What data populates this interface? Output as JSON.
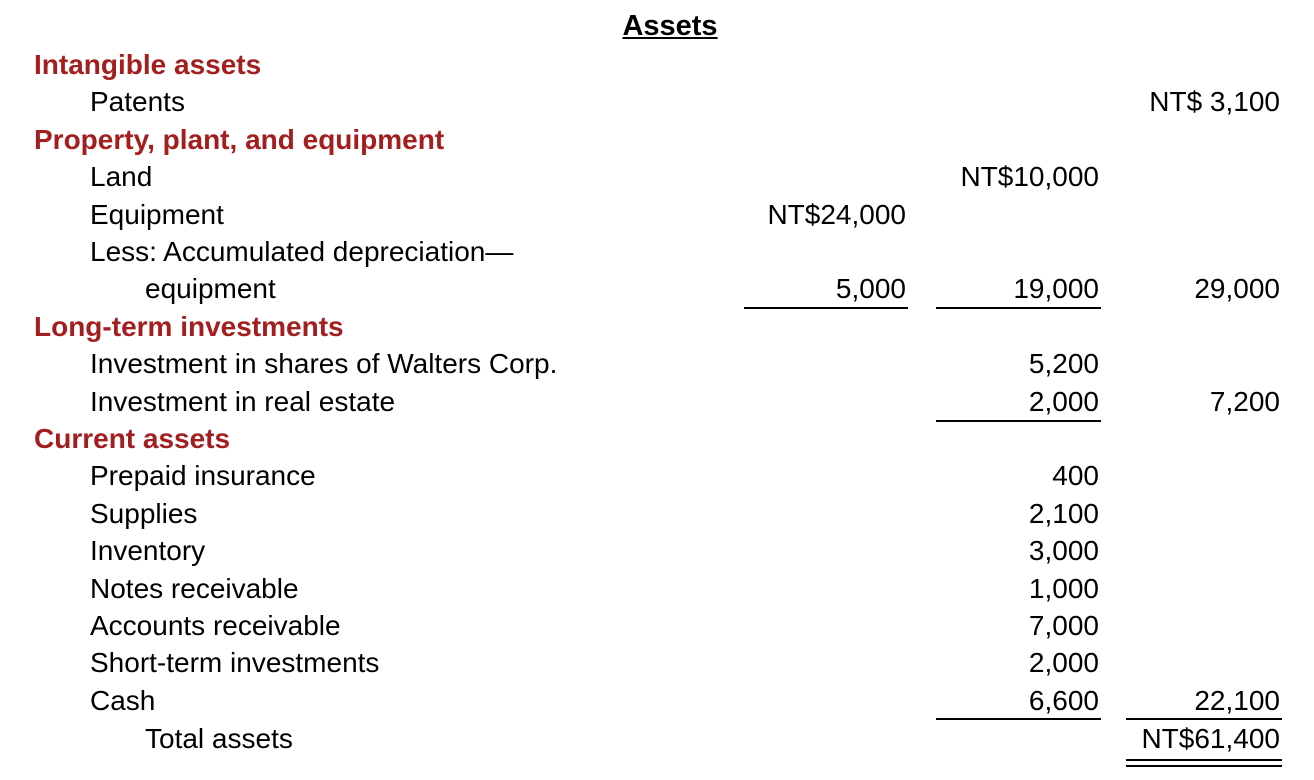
{
  "title": "Assets",
  "sections": {
    "intangible": {
      "heading": "Intangible assets",
      "patents": {
        "label": "Patents",
        "total": "NT$ 3,100"
      }
    },
    "ppe": {
      "heading": "Property, plant, and equipment",
      "land": {
        "label": "Land",
        "amount": "NT$10,000"
      },
      "equipment": {
        "label": "Equipment",
        "amount": "NT$24,000"
      },
      "less_line1": {
        "label": "Less: Accumulated depreciation—"
      },
      "less_line2": {
        "label": "equipment",
        "depr": "5,000",
        "net": "19,000",
        "total": "29,000"
      }
    },
    "investments": {
      "heading": "Long-term investments",
      "walters": {
        "label": "Investment in shares of Walters Corp.",
        "amount": "5,200"
      },
      "real_estate": {
        "label": "Investment in real estate",
        "amount": "2,000",
        "total": "7,200"
      }
    },
    "current": {
      "heading": "Current assets",
      "items": [
        {
          "label": "Prepaid insurance",
          "amount": "400"
        },
        {
          "label": "Supplies",
          "amount": "2,100"
        },
        {
          "label": "Inventory",
          "amount": "3,000"
        },
        {
          "label": "Notes receivable",
          "amount": "1,000"
        },
        {
          "label": "Accounts receivable",
          "amount": "7,000"
        },
        {
          "label": "Short-term investments",
          "amount": "2,000"
        },
        {
          "label": "Cash",
          "amount": "6,600",
          "total": "22,100"
        }
      ]
    },
    "total": {
      "label": "Total assets",
      "amount": "NT$61,400"
    }
  }
}
